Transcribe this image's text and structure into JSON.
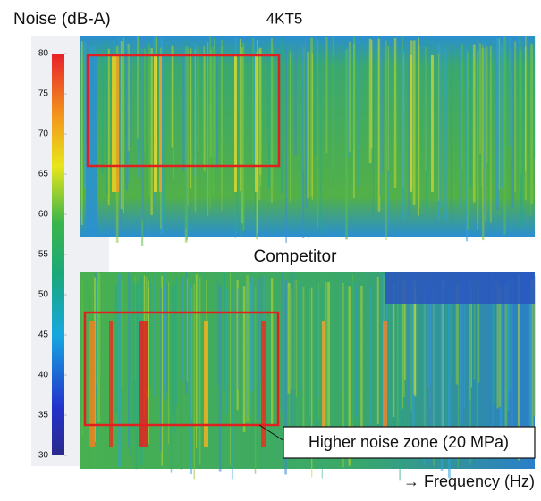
{
  "title": "Noise (dB-A)",
  "panels": [
    {
      "label": "4KT5"
    },
    {
      "label": "Competitor"
    }
  ],
  "colorbar": {
    "range": [
      30,
      80
    ],
    "ticks": [
      30,
      35,
      40,
      45,
      50,
      55,
      60,
      65,
      70,
      75,
      80
    ]
  },
  "annotation": "Higher noise zone (20 MPa)",
  "x_axis_label": "→ Frequency (Hz)"
}
